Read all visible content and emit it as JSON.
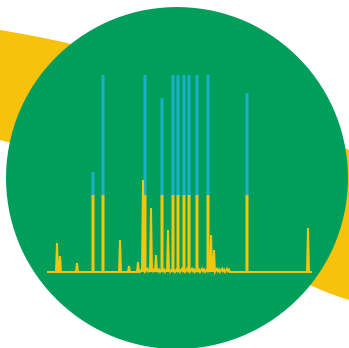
{
  "colors": {
    "background": "#ffffff",
    "accent_band": "#f6c20b",
    "circle": "#009e5b",
    "trace": "#f2c50f",
    "peak_top": "#1ab0c8"
  },
  "graphic": {
    "kind": "spectrum-logo",
    "description_icon": "peak-spectrum-icon"
  }
}
